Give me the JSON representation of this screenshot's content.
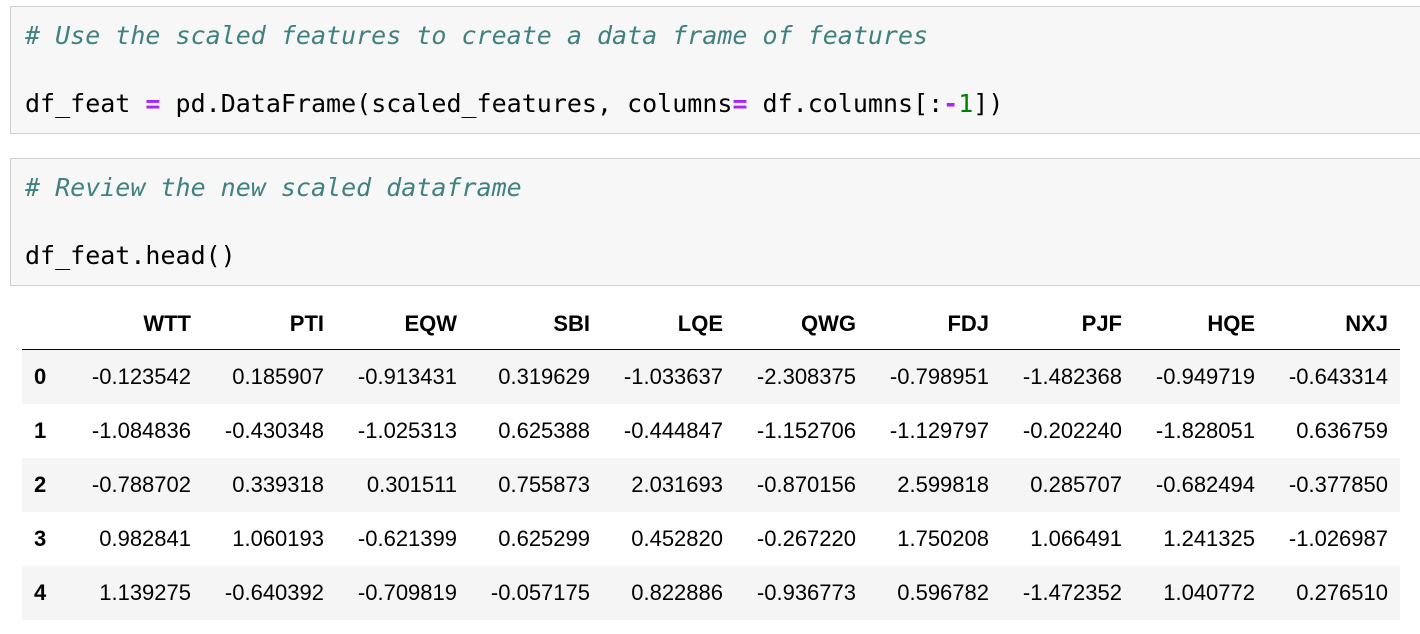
{
  "cells": [
    {
      "comment": "# Use the scaled features to create a data frame of features",
      "code": {
        "pre": "df_feat ",
        "eq": "=",
        "mid": " pd.DataFrame(scaled_features, columns",
        "eq2": "=",
        "post_a": " df.columns[:",
        "minus": "-",
        "num": "1",
        "post_b": "])"
      }
    },
    {
      "comment": "# Review the new scaled dataframe",
      "code": {
        "text": "df_feat.head()"
      }
    }
  ],
  "dataframe": {
    "columns": [
      "",
      "WTT",
      "PTI",
      "EQW",
      "SBI",
      "LQE",
      "QWG",
      "FDJ",
      "PJF",
      "HQE",
      "NXJ"
    ],
    "rows": [
      [
        "0",
        "-0.123542",
        "0.185907",
        "-0.913431",
        "0.319629",
        "-1.033637",
        "-2.308375",
        "-0.798951",
        "-1.482368",
        "-0.949719",
        "-0.643314"
      ],
      [
        "1",
        "-1.084836",
        "-0.430348",
        "-1.025313",
        "0.625388",
        "-0.444847",
        "-1.152706",
        "-1.129797",
        "-0.202240",
        "-1.828051",
        "0.636759"
      ],
      [
        "2",
        "-0.788702",
        "0.339318",
        "0.301511",
        "0.755873",
        "2.031693",
        "-0.870156",
        "2.599818",
        "0.285707",
        "-0.682494",
        "-0.377850"
      ],
      [
        "3",
        "0.982841",
        "1.060193",
        "-0.621399",
        "0.625299",
        "0.452820",
        "-0.267220",
        "1.750208",
        "1.066491",
        "1.241325",
        "-1.026987"
      ],
      [
        "4",
        "1.139275",
        "-0.640392",
        "-0.709819",
        "-0.057175",
        "0.822886",
        "-0.936773",
        "0.596782",
        "-1.472352",
        "1.040772",
        "0.276510"
      ]
    ]
  }
}
